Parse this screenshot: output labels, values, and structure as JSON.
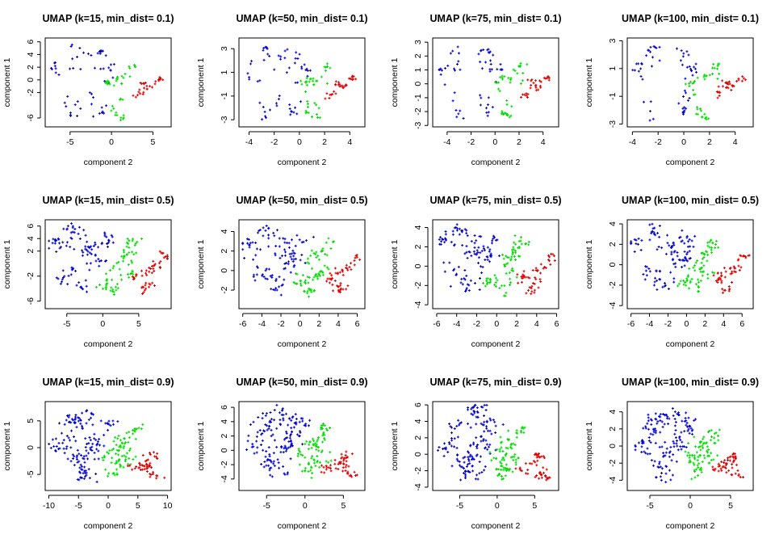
{
  "colors": {
    "class_a": "#0000cc",
    "class_b": "#00dd00",
    "class_c": "#dd0000"
  },
  "chart_data": [
    {
      "type": "scatter",
      "title": "UMAP (k=15, min_dist= 0.1)",
      "xlabel": "component 2",
      "ylabel": "component 1",
      "xlim": [
        -8,
        7.2
      ],
      "ylim": [
        -7.4,
        6.6
      ],
      "xticks": [
        -5,
        0,
        5
      ],
      "yticks": [
        -6,
        -2,
        0,
        2,
        4,
        6
      ],
      "grid": false,
      "legend": "none"
    },
    {
      "type": "scatter",
      "title": "UMAP (k=50, min_dist= 0.1)",
      "xlabel": "component 2",
      "ylabel": "component 1",
      "xlim": [
        -4.8,
        5.2
      ],
      "ylim": [
        -3.6,
        3.9
      ],
      "xticks": [
        -4,
        -2,
        0,
        2,
        4
      ],
      "yticks": [
        -3,
        -1,
        1,
        3
      ],
      "grid": false,
      "legend": "none"
    },
    {
      "type": "scatter",
      "title": "UMAP (k=75, min_dist= 0.1)",
      "xlabel": "component 2",
      "ylabel": "component 1",
      "xlim": [
        -5.2,
        5.3
      ],
      "ylim": [
        -3.1,
        3.3
      ],
      "xticks": [
        -4,
        -2,
        0,
        2,
        4
      ],
      "yticks": [
        -3,
        -2,
        -1,
        0,
        1,
        2,
        3
      ],
      "grid": false,
      "legend": "none"
    },
    {
      "type": "scatter",
      "title": "UMAP (k=100, min_dist= 0.1)",
      "xlabel": "component 2",
      "ylabel": "component 1",
      "xlim": [
        -4.4,
        5.4
      ],
      "ylim": [
        -3.2,
        3.2
      ],
      "xticks": [
        -4,
        -2,
        0,
        2,
        4
      ],
      "yticks": [
        -3,
        -1,
        1,
        3
      ],
      "grid": false,
      "legend": "none"
    },
    {
      "type": "scatter",
      "title": "UMAP (k=15, min_dist= 0.5)",
      "xlabel": "component 2",
      "ylabel": "component 1",
      "xlim": [
        -8,
        9.5
      ],
      "ylim": [
        -7.2,
        7
      ],
      "xticks": [
        -5,
        0,
        5
      ],
      "yticks": [
        -6,
        -2,
        2,
        4,
        6
      ],
      "grid": false,
      "legend": "none"
    },
    {
      "type": "scatter",
      "title": "UMAP (k=50, min_dist= 0.5)",
      "xlabel": "component 2",
      "ylabel": "component 1",
      "xlim": [
        -6.4,
        6.8
      ],
      "ylim": [
        -3.9,
        5.2
      ],
      "xticks": [
        -6,
        -4,
        -2,
        0,
        2,
        4,
        6
      ],
      "yticks": [
        -2,
        0,
        2,
        4
      ],
      "grid": false,
      "legend": "none"
    },
    {
      "type": "scatter",
      "title": "UMAP (k=75, min_dist= 0.5)",
      "xlabel": "component 2",
      "ylabel": "component 1",
      "xlim": [
        -6.4,
        6.2
      ],
      "ylim": [
        -4.4,
        4.8
      ],
      "xticks": [
        -6,
        -4,
        -2,
        0,
        2,
        4,
        6
      ],
      "yticks": [
        -4,
        -2,
        0,
        2,
        4
      ],
      "grid": false,
      "legend": "none"
    },
    {
      "type": "scatter",
      "title": "UMAP (k=100, min_dist= 0.5)",
      "xlabel": "component 2",
      "ylabel": "component 1",
      "xlim": [
        -6.4,
        7.2
      ],
      "ylim": [
        -4.3,
        4.4
      ],
      "xticks": [
        -6,
        -4,
        -2,
        0,
        2,
        4,
        6
      ],
      "yticks": [
        -4,
        -2,
        0,
        2,
        4
      ],
      "grid": false,
      "legend": "none"
    },
    {
      "type": "scatter",
      "title": "UMAP (k=15, min_dist= 0.9)",
      "xlabel": "component 2",
      "ylabel": "component 1",
      "xlim": [
        -10.6,
        10.6
      ],
      "ylim": [
        -8,
        8.6
      ],
      "xticks": [
        -10,
        -5,
        0,
        5,
        10
      ],
      "yticks": [
        -5,
        0,
        5
      ],
      "grid": false,
      "legend": "none"
    },
    {
      "type": "scatter",
      "title": "UMAP (k=50, min_dist= 0.9)",
      "xlabel": "component 2",
      "ylabel": "component 1",
      "xlim": [
        -8.6,
        7.8
      ],
      "ylim": [
        -5.6,
        6.8
      ],
      "xticks": [
        -5,
        0,
        5
      ],
      "yticks": [
        -4,
        -2,
        0,
        2,
        4,
        6
      ],
      "grid": false,
      "legend": "none"
    },
    {
      "type": "scatter",
      "title": "UMAP (k=75, min_dist= 0.9)",
      "xlabel": "component 2",
      "ylabel": "component 1",
      "xlim": [
        -8.6,
        8.2
      ],
      "ylim": [
        -4.4,
        6.4
      ],
      "xticks": [
        -5,
        0,
        5
      ],
      "yticks": [
        -4,
        -2,
        0,
        2,
        4,
        6
      ],
      "grid": false,
      "legend": "none"
    },
    {
      "type": "scatter",
      "title": "UMAP (k=100, min_dist= 0.9)",
      "xlabel": "component 2",
      "ylabel": "component 1",
      "xlim": [
        -7.8,
        7.8
      ],
      "ylim": [
        -5.2,
        5.2
      ],
      "xticks": [
        -5,
        0,
        5
      ],
      "yticks": [
        -4,
        -2,
        0,
        2,
        4
      ],
      "grid": false,
      "legend": "none"
    }
  ]
}
